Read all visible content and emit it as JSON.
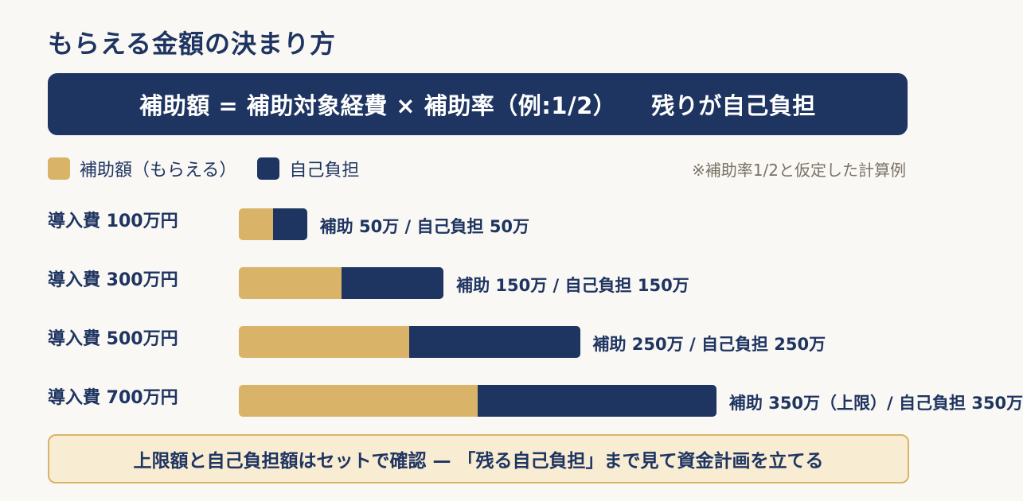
{
  "title": "もらえる金額の決まり方",
  "formula": {
    "main": "補助額 = 補助対象経費 × 補助率（例:1/2）",
    "rest": "残りが自己負担"
  },
  "legend": {
    "subsidy": "補助額（もらえる）",
    "self_pay": "自己負担"
  },
  "note": "※補助率1/2と仮定した計算例",
  "colors": {
    "subsidy": "#d9b468",
    "self_pay": "#1e3461",
    "banner": "#1e3461",
    "footer_bg": "#f8ecd2"
  },
  "chart_data": {
    "type": "bar",
    "orientation": "horizontal",
    "stacked": true,
    "categories": [
      "導入費 100万円",
      "導入費 300万円",
      "導入費 500万円",
      "導入費 700万円"
    ],
    "series": [
      {
        "name": "補助額（もらえる）",
        "values": [
          50,
          150,
          250,
          350
        ]
      },
      {
        "name": "自己負担",
        "values": [
          50,
          150,
          250,
          350
        ]
      }
    ],
    "data_labels": [
      "補助 50万 / 自己負担 50万",
      "補助 150万 / 自己負担 150万",
      "補助 250万 / 自己負担 250万",
      "補助 350万（上限）/ 自己負担 350万"
    ],
    "unit": "万円",
    "grid": false,
    "legend_position": "top-left"
  },
  "footer": "上限額と自己負担額はセットで確認 — 「残る自己負担」まで見て資金計画を立てる"
}
